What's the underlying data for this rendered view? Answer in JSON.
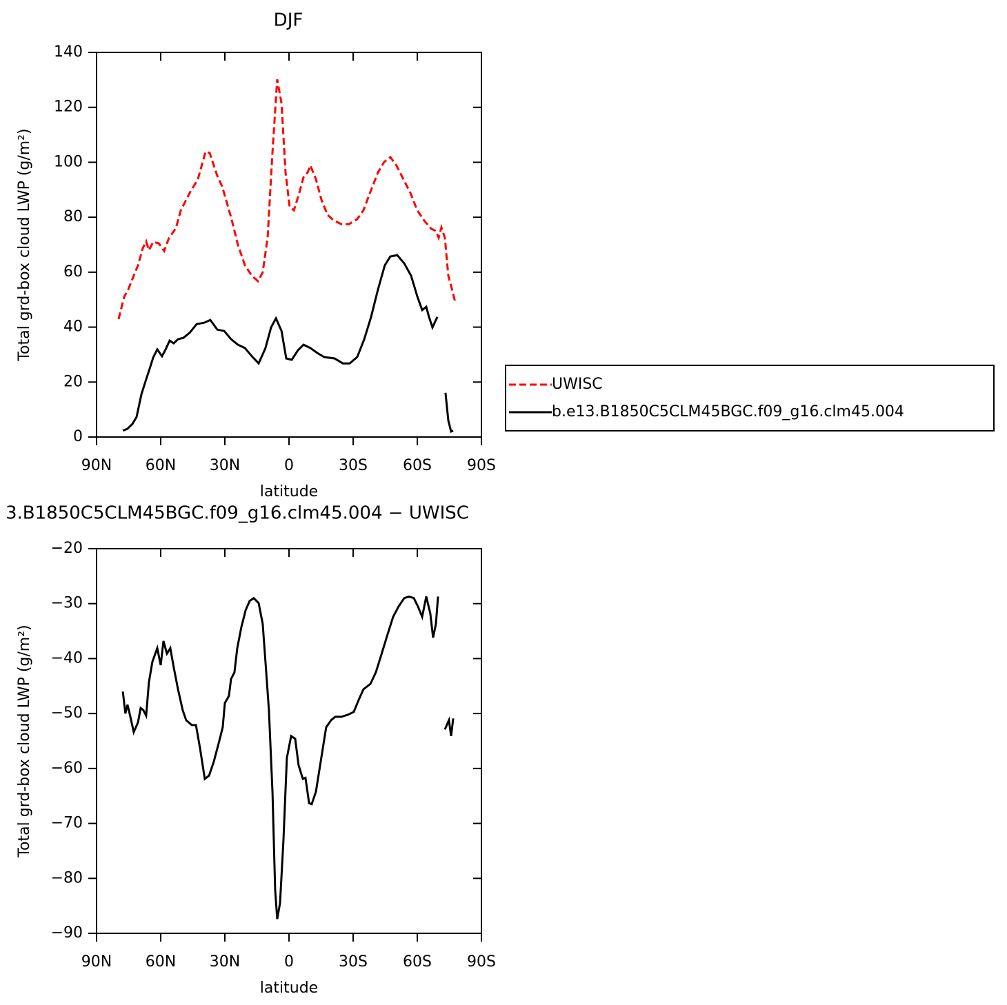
{
  "chart_data": [
    {
      "type": "line",
      "title": "DJF",
      "xlabel": "latitude",
      "ylabel": "Total grd-box cloud LWP (g/m²)",
      "xlim": [
        90,
        -90
      ],
      "xticks": [
        {
          "value": 90,
          "label": "90N"
        },
        {
          "value": 60,
          "label": "60N"
        },
        {
          "value": 30,
          "label": "30N"
        },
        0,
        {
          "value": -30,
          "label": "30S"
        },
        {
          "value": -60,
          "label": "60S"
        },
        {
          "value": -90,
          "label": "90S"
        }
      ],
      "ylim": [
        0,
        140
      ],
      "yticks": [
        0,
        20,
        40,
        60,
        80,
        100,
        120,
        140
      ],
      "legend": "right",
      "series": [
        {
          "name": "UWISC",
          "color": "#ff0000",
          "dashed": true,
          "x": [
            79.7,
            77.1,
            75.2,
            72.6,
            70.6,
            68.4,
            66.8,
            65.5,
            63.5,
            60.9,
            58.4,
            56.1,
            52.9,
            50.6,
            46.5,
            42.6,
            39,
            37.1,
            33.5,
            31.3,
            27.1,
            23.9,
            20.6,
            17.4,
            14.5,
            12.3,
            10,
            7.7,
            5.5,
            3.5,
            1.6,
            -0.3,
            -2.3,
            -4.8,
            -6.8,
            -8.7,
            -10,
            -12.6,
            -15.2,
            -18.1,
            -21,
            -24.5,
            -28.1,
            -31.9,
            -34.8,
            -38.1,
            -41.6,
            -44.5,
            -47.4,
            -50.3,
            -53.5,
            -56.8,
            -60,
            -63.2,
            -66.5,
            -68.7,
            -70,
            -71.3,
            -72.9,
            -74.5,
            -76.1,
            -77.7
          ],
          "values": [
            42.9,
            51,
            53.7,
            58.7,
            62.5,
            68.7,
            71.2,
            68,
            71,
            70.5,
            67.7,
            72.5,
            76,
            82.5,
            88.8,
            93.8,
            103.9,
            103.4,
            95,
            91.3,
            80,
            70,
            62.5,
            58.7,
            56.7,
            60,
            72.5,
            103.9,
            130.2,
            121.4,
            96.3,
            83.8,
            82.5,
            88.8,
            94.6,
            96.3,
            98.8,
            93.8,
            86.3,
            80.8,
            78.8,
            77.5,
            77.5,
            79.3,
            82.5,
            89.3,
            96.3,
            100.1,
            101.9,
            98.8,
            93.8,
            88.8,
            82.5,
            78.8,
            75.8,
            75,
            72.5,
            76.3,
            72.5,
            58.7,
            54.2,
            49.2
          ]
        },
        {
          "name": "b.e13.B1850C5CLM45BGC.f09_g16.clm45.004",
          "color": "#000000",
          "dashed": false,
          "x": [
            77.7,
            75.5,
            73.2,
            71.3,
            69,
            66.8,
            65.2,
            63.5,
            61.6,
            59.4,
            57.7,
            55.8,
            53.9,
            51.9,
            49.4,
            46.5,
            43.2,
            39.7,
            36.8,
            33.5,
            30.3,
            27.1,
            23.9,
            20.6,
            17.4,
            14.2,
            11,
            8.4,
            6.1,
            3.5,
            1.3,
            -1.3,
            -4.2,
            -6.8,
            -10,
            -13.2,
            -16.5,
            -21.3,
            -25.2,
            -28.4,
            -31.9,
            -35.2,
            -38.4,
            -41.6,
            -44.8,
            -47.4,
            -50.6,
            -53.9,
            -57.1,
            -60,
            -62.3,
            -64.2,
            -65.5,
            -67.1,
            -69.4,
            null,
            -73.2,
            -74.5,
            -75.8,
            -76.8
          ],
          "values": [
            2.3,
            3,
            4.8,
            7.3,
            15.6,
            21,
            24.8,
            29,
            31.9,
            29.4,
            31.9,
            35.1,
            34.1,
            35.6,
            36.1,
            37.9,
            41.1,
            41.6,
            42.6,
            39.1,
            38.6,
            35.6,
            33.6,
            32.4,
            29.4,
            26.8,
            32.4,
            39.9,
            43.2,
            38.6,
            28.6,
            28.1,
            31.6,
            33.6,
            32.4,
            30.6,
            29.1,
            28.6,
            26.8,
            26.8,
            29.1,
            35.6,
            43.7,
            53.7,
            62.5,
            65.7,
            66.2,
            63.2,
            58.7,
            51.2,
            46.2,
            47.4,
            43.7,
            39.9,
            43.7,
            null,
            16.1,
            6,
            2,
            2.3
          ]
        }
      ]
    },
    {
      "type": "line",
      "title": "3.B1850C5CLM45BGC.f09_g16.clm45.004 − UWISC",
      "xlabel": "latitude",
      "ylabel": "Total grd-box cloud LWP (g/m²)",
      "xlim": [
        90,
        -90
      ],
      "xticks": [
        {
          "value": 90,
          "label": "90N"
        },
        {
          "value": 60,
          "label": "60N"
        },
        {
          "value": 30,
          "label": "30N"
        },
        0,
        {
          "value": -30,
          "label": "30S"
        },
        {
          "value": -60,
          "label": "60S"
        },
        {
          "value": -90,
          "label": "90S"
        }
      ],
      "ylim": [
        -90,
        -20
      ],
      "yticks": [
        {
          "value": -90,
          "label": "−90"
        },
        {
          "value": -80,
          "label": "−80"
        },
        {
          "value": -70,
          "label": "−70"
        },
        {
          "value": -60,
          "label": "−60"
        },
        {
          "value": -50,
          "label": "−50"
        },
        {
          "value": -40,
          "label": "−40"
        },
        {
          "value": -30,
          "label": "−30"
        },
        {
          "value": -20,
          "label": "−20"
        }
      ],
      "series": [
        {
          "color": "#000000",
          "dashed": false,
          "x": [
            77.7,
            76.5,
            75.5,
            74.2,
            72.6,
            70.6,
            69.4,
            68.1,
            66.8,
            65.5,
            63.9,
            61.6,
            60,
            58.7,
            57.1,
            55.5,
            53.9,
            51.9,
            49.7,
            48.1,
            45.5,
            43.5,
            41.6,
            39.4,
            37.4,
            35.2,
            32.6,
            31,
            30,
            28.1,
            27.1,
            25.5,
            24.2,
            22.3,
            20.3,
            18.4,
            16.5,
            14.2,
            12.3,
            11,
            9.4,
            7.7,
            6.5,
            5.5,
            4.2,
            2.6,
            1,
            -1,
            -2.9,
            -4.5,
            -6.5,
            -7.7,
            -9.4,
            -10.6,
            -12.6,
            -14.8,
            -17.4,
            -19.7,
            -21.6,
            -24.5,
            -27.7,
            -30.3,
            -32.6,
            -34.8,
            -38.1,
            -40.6,
            -43.2,
            -46.1,
            -48.7,
            -51.3,
            -53.9,
            -56.1,
            -58.4,
            -60.3,
            -62.3,
            -64.2,
            -66.1,
            -67.4,
            -68.7,
            -69.7,
            null,
            -72.9,
            -74.8,
            -75.8,
            -76.8
          ],
          "values": [
            -46,
            -50,
            -48.4,
            -50.6,
            -53.4,
            -51.6,
            -49,
            -49.4,
            -50.4,
            -44.3,
            -40.6,
            -38.1,
            -41.2,
            -36.8,
            -39.1,
            -38.1,
            -41.6,
            -45.6,
            -49.4,
            -51.2,
            -52.1,
            -52.1,
            -56.3,
            -61.9,
            -61.3,
            -58.8,
            -55,
            -52.5,
            -48.1,
            -46.8,
            -43.7,
            -42.5,
            -38.1,
            -34.3,
            -31.2,
            -29.5,
            -29,
            -29.9,
            -33.7,
            -40.6,
            -49.4,
            -64.4,
            -82,
            -87.4,
            -84.5,
            -73.2,
            -58.1,
            -54.1,
            -54.6,
            -59.4,
            -61.9,
            -61.7,
            -66.3,
            -66.5,
            -64.2,
            -58.8,
            -52.5,
            -51.2,
            -50.6,
            -50.6,
            -50.2,
            -49.7,
            -47.5,
            -45.6,
            -44.6,
            -42.5,
            -39.3,
            -35.6,
            -32.4,
            -30.5,
            -29,
            -28.7,
            -29,
            -30.5,
            -32.4,
            -28.7,
            -31.8,
            -36.2,
            -33.7,
            -28.7,
            null,
            -52.9,
            -51.2,
            -54.1,
            -50.9
          ]
        }
      ]
    }
  ]
}
